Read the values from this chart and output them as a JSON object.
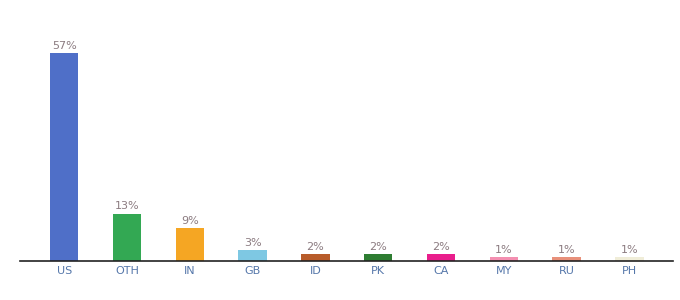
{
  "categories": [
    "US",
    "OTH",
    "IN",
    "GB",
    "ID",
    "PK",
    "CA",
    "MY",
    "RU",
    "PH"
  ],
  "values": [
    57,
    13,
    9,
    3,
    2,
    2,
    2,
    1,
    1,
    1
  ],
  "bar_colors": [
    "#4F6FC8",
    "#33A853",
    "#F5A623",
    "#7EC8E3",
    "#B85C2A",
    "#2E7D32",
    "#E91E8C",
    "#F48FB1",
    "#E8907A",
    "#F0EDD8"
  ],
  "labels": [
    "57%",
    "13%",
    "9%",
    "3%",
    "2%",
    "2%",
    "2%",
    "1%",
    "1%",
    "1%"
  ],
  "label_color": "#8B7B80",
  "tick_color": "#5577AA",
  "ylim": [
    0,
    65
  ],
  "background_color": "#ffffff",
  "label_fontsize": 8.0,
  "tick_fontsize": 8.0,
  "bar_width": 0.45
}
